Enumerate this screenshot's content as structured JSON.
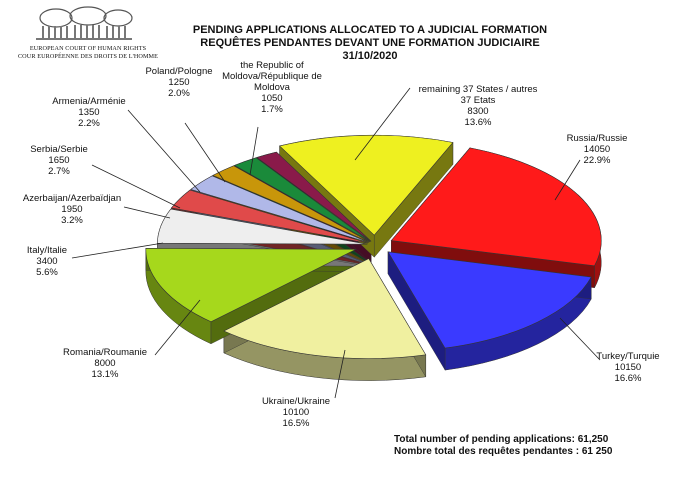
{
  "logo": {
    "org_en": "EUROPEAN COURT OF HUMAN RIGHTS",
    "org_fr": "COUR EUROPÉENNE DES DROITS DE L'HOMME",
    "icon": "court-building-icon"
  },
  "chart_data": {
    "type": "pie",
    "title": "PENDING APPLICATIONS ALLOCATED TO A JUDICIAL FORMATION",
    "subtitle": "REQUÊTES PENDANTES DEVANT UNE FORMATION JUDICIAIRE",
    "date": "31/10/2020",
    "three_d": true,
    "exploded": true,
    "slices": [
      {
        "label": "Russia/Russie",
        "value": 14050,
        "percent": "22.9%",
        "color": "#ff1a1a"
      },
      {
        "label": "Turkey/Turquie",
        "value": 10150,
        "percent": "16.6%",
        "color": "#3a3aff"
      },
      {
        "label": "Ukraine/Ukraine",
        "value": 10100,
        "percent": "16.5%",
        "color": "#f0f0a0"
      },
      {
        "label": "Romania/Roumanie",
        "value": 8000,
        "percent": "13.1%",
        "color": "#a6d81c"
      },
      {
        "label": "Italy/Italie",
        "value": 3400,
        "percent": "5.6%",
        "color": "#eeeeee"
      },
      {
        "label": "Azerbaijan/Azerbaïdjan",
        "value": 1950,
        "percent": "3.2%",
        "color": "#e04a4a"
      },
      {
        "label": "Serbia/Serbie",
        "value": 1650,
        "percent": "2.7%",
        "color": "#b0b8e8"
      },
      {
        "label": "Armenia/Arménie",
        "value": 1350,
        "percent": "2.2%",
        "color": "#c8960a"
      },
      {
        "label": "Poland/Pologne",
        "value": 1250,
        "percent": "2.0%",
        "color": "#1a8a3a"
      },
      {
        "label": "the Republic of Moldova/République de Moldova",
        "value": 1050,
        "percent": "1.7%",
        "color": "#8a1a4a"
      },
      {
        "label": "remaining 37 States / autres 37 Etats",
        "value": 8300,
        "percent": "13.6%",
        "color": "#eef020"
      }
    ]
  },
  "labels": {
    "russia": {
      "l1": "Russia/Russie",
      "l2": "14050",
      "l3": "22.9%"
    },
    "turkey": {
      "l1": "Turkey/Turquie",
      "l2": "10150",
      "l3": "16.6%"
    },
    "ukraine": {
      "l1": "Ukraine/Ukraine",
      "l2": "10100",
      "l3": "16.5%"
    },
    "romania": {
      "l1": "Romania/Roumanie",
      "l2": "8000",
      "l3": "13.1%"
    },
    "italy": {
      "l1": "Italy/Italie",
      "l2": "3400",
      "l3": "5.6%"
    },
    "azerbaijan": {
      "l1": "Azerbaijan/Azerbaïdjan",
      "l2": "1950",
      "l3": "3.2%"
    },
    "serbia": {
      "l1": "Serbia/Serbie",
      "l2": "1650",
      "l3": "2.7%"
    },
    "armenia": {
      "l1": "Armenia/Arménie",
      "l2": "1350",
      "l3": "2.2%"
    },
    "poland": {
      "l1": "Poland/Pologne",
      "l2": "1250",
      "l3": "2.0%"
    },
    "moldova": {
      "l1": "the Republic of",
      "l2": "Moldova/République de",
      "l3": "Moldova",
      "l4": "1050",
      "l5": "1.7%"
    },
    "remaining": {
      "l1": "remaining 37 States / autres",
      "l2": "37 Etats",
      "l3": "8300",
      "l4": "13.6%"
    }
  },
  "totals": {
    "en": "Total number of pending applications:  61,250",
    "fr": "Nombre total des requêtes pendantes : 61 250"
  }
}
